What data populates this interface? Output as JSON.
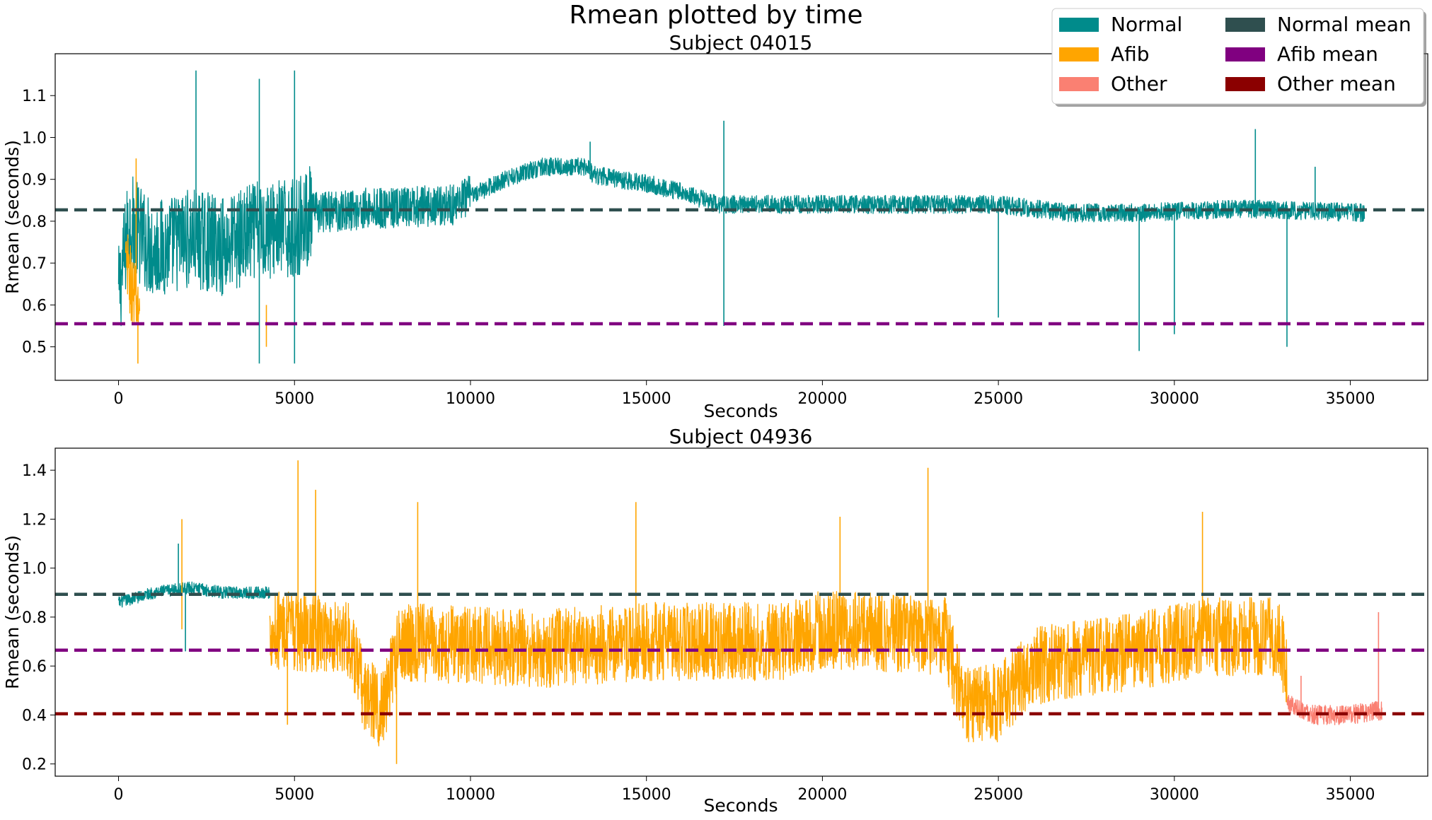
{
  "suptitle": "Rmean plotted by time",
  "legend": {
    "placement": "top-right",
    "entries": [
      {
        "label": "Normal",
        "color": "#008b8b"
      },
      {
        "label": "Afib",
        "color": "#ffa500"
      },
      {
        "label": "Other",
        "color": "#fa8072"
      },
      {
        "label": "Normal mean",
        "color": "#2f4f4f"
      },
      {
        "label": "Afib mean",
        "color": "#800080"
      },
      {
        "label": "Other mean",
        "color": "#8b0000"
      }
    ]
  },
  "chart_data": [
    {
      "type": "line",
      "title": "Subject 04015",
      "xlabel": "Seconds",
      "ylabel": "Rmean (seconds)",
      "xlim": [
        -1800,
        37200
      ],
      "ylim": [
        0.42,
        1.2
      ],
      "xticks": [
        0,
        5000,
        10000,
        15000,
        20000,
        25000,
        30000,
        35000
      ],
      "yticks": [
        0.5,
        0.6,
        0.7,
        0.8,
        0.9,
        1.0,
        1.1
      ],
      "ytick_labels": [
        "0.5",
        "0.6",
        "0.7",
        "0.8",
        "0.9",
        "1.0",
        "1.1"
      ],
      "grid": false,
      "series": [
        {
          "name": "Normal",
          "color": "#008b8b",
          "x_range": [
            0,
            35400
          ],
          "profile": [
            [
              0,
              0.62
            ],
            [
              300,
              0.8
            ],
            [
              1000,
              0.73
            ],
            [
              2000,
              0.76
            ],
            [
              3000,
              0.74
            ],
            [
              4000,
              0.78
            ],
            [
              5000,
              0.78
            ],
            [
              5500,
              0.82
            ],
            [
              7000,
              0.83
            ],
            [
              8000,
              0.83
            ],
            [
              9500,
              0.84
            ],
            [
              10000,
              0.86
            ],
            [
              11000,
              0.9
            ],
            [
              12000,
              0.93
            ],
            [
              13300,
              0.93
            ],
            [
              13500,
              0.91
            ],
            [
              15000,
              0.89
            ],
            [
              16000,
              0.87
            ],
            [
              17000,
              0.84
            ],
            [
              18000,
              0.84
            ],
            [
              20000,
              0.84
            ],
            [
              23000,
              0.84
            ],
            [
              25000,
              0.84
            ],
            [
              27000,
              0.82
            ],
            [
              29000,
              0.82
            ],
            [
              32000,
              0.83
            ],
            [
              35400,
              0.82
            ]
          ],
          "spikes": [
            [
              2200,
              1.16
            ],
            [
              4000,
              1.14
            ],
            [
              5000,
              1.16
            ],
            [
              13400,
              0.99
            ],
            [
              17200,
              1.04
            ],
            [
              32300,
              1.02
            ],
            [
              34000,
              0.93
            ],
            [
              17200,
              0.55
            ],
            [
              25000,
              0.57
            ],
            [
              29000,
              0.49
            ],
            [
              30000,
              0.53
            ],
            [
              33200,
              0.5
            ],
            [
              4000,
              0.46
            ],
            [
              5000,
              0.46
            ]
          ]
        },
        {
          "name": "Afib",
          "color": "#ffa500",
          "x_range": [
            200,
            600
          ],
          "profile": [
            [
              200,
              0.7
            ],
            [
              500,
              0.6
            ]
          ],
          "spikes": [
            [
              500,
              0.95
            ],
            [
              550,
              0.46
            ],
            [
              4200,
              0.5
            ]
          ]
        }
      ],
      "mean_lines": [
        {
          "name": "Normal mean",
          "y": 0.827,
          "color": "#2f4f4f"
        },
        {
          "name": "Afib mean",
          "y": 0.555,
          "color": "#800080"
        }
      ]
    },
    {
      "type": "line",
      "title": "Subject 04936",
      "xlabel": "Seconds",
      "ylabel": "Rmean (seconds)",
      "xlim": [
        -1800,
        37200
      ],
      "ylim": [
        0.15,
        1.49
      ],
      "xticks": [
        0,
        5000,
        10000,
        15000,
        20000,
        25000,
        30000,
        35000
      ],
      "yticks": [
        0.2,
        0.4,
        0.6,
        0.8,
        1.0,
        1.2,
        1.4
      ],
      "ytick_labels": [
        "0.2",
        "0.4",
        "0.6",
        "0.8",
        "1.0",
        "1.2",
        "1.4"
      ],
      "grid": false,
      "series": [
        {
          "name": "Normal",
          "color": "#008b8b",
          "x_range": [
            0,
            4300
          ],
          "profile": [
            [
              0,
              0.86
            ],
            [
              1000,
              0.9
            ],
            [
              2000,
              0.92
            ],
            [
              3000,
              0.9
            ],
            [
              4300,
              0.9
            ]
          ],
          "spikes": [
            [
              1700,
              1.1
            ],
            [
              1900,
              0.66
            ]
          ]
        },
        {
          "name": "Afib",
          "color": "#ffa500",
          "x_range": [
            4300,
            33200
          ],
          "profile": [
            [
              4300,
              0.75
            ],
            [
              6500,
              0.72
            ],
            [
              7000,
              0.48
            ],
            [
              7500,
              0.42
            ],
            [
              8000,
              0.7
            ],
            [
              12000,
              0.67
            ],
            [
              15000,
              0.7
            ],
            [
              19000,
              0.7
            ],
            [
              20000,
              0.75
            ],
            [
              23500,
              0.72
            ],
            [
              24000,
              0.45
            ],
            [
              25000,
              0.45
            ],
            [
              26000,
              0.6
            ],
            [
              29000,
              0.66
            ],
            [
              31000,
              0.72
            ],
            [
              33000,
              0.72
            ],
            [
              33200,
              0.55
            ]
          ],
          "spikes": [
            [
              5100,
              1.44
            ],
            [
              5600,
              1.32
            ],
            [
              8500,
              1.27
            ],
            [
              14700,
              1.27
            ],
            [
              20500,
              1.21
            ],
            [
              23000,
              1.41
            ],
            [
              30800,
              1.23
            ],
            [
              1800,
              1.2
            ],
            [
              7900,
              0.2
            ],
            [
              4800,
              0.36
            ]
          ]
        },
        {
          "name": "Other",
          "color": "#fa8072",
          "x_range": [
            33200,
            35900
          ],
          "profile": [
            [
              33200,
              0.45
            ],
            [
              34000,
              0.4
            ],
            [
              35000,
              0.4
            ],
            [
              35900,
              0.42
            ]
          ],
          "spikes": [
            [
              35800,
              0.82
            ],
            [
              33600,
              0.56
            ]
          ]
        }
      ],
      "mean_lines": [
        {
          "name": "Normal mean",
          "y": 0.893,
          "color": "#2f4f4f"
        },
        {
          "name": "Afib mean",
          "y": 0.665,
          "color": "#800080"
        },
        {
          "name": "Other mean",
          "y": 0.405,
          "color": "#8b0000"
        }
      ]
    }
  ]
}
